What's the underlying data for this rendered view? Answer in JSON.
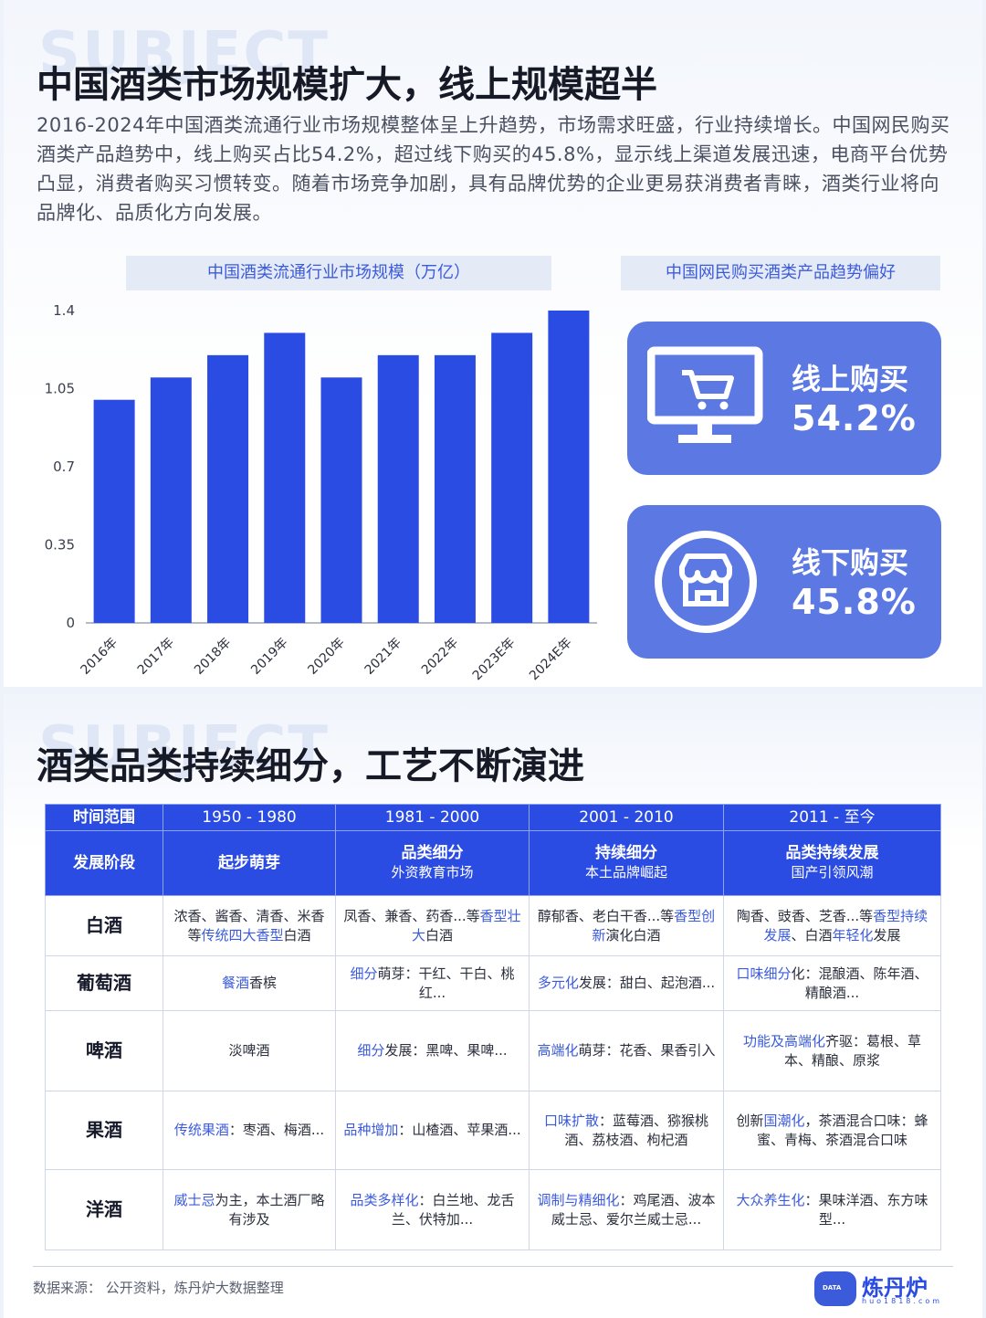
{
  "section1": {
    "ghost_text": "SUBJECT",
    "title": "中国酒类市场规模扩大，线上规模超半",
    "intro": "2016-2024年中国酒类流通行业市场规模整体呈上升趋势，市场需求旺盛，行业持续增长。中国网民购买酒类产品趋势中，线上购买占比54.2%，超过线下购买的45.8%，显示线上渠道发展迅速，电商平台优势凸显，消费者购买习惯转变。随着市场竞争加剧，具有品牌优势的企业更易获消费者青睐，酒类行业将向品牌化、品质化方向发展。",
    "chart_title": "中国酒类流通行业市场规模（万亿）",
    "pref_title": "中国网民购买酒类产品趋势偏好",
    "online_label": "线上购买",
    "online_value": "54.2%",
    "offline_label": "线下购买",
    "offline_value": "45.8%",
    "online_icon": "computer-cart-icon",
    "offline_icon": "storefront-icon"
  },
  "chart_data": {
    "type": "bar",
    "title": "中国酒类流通行业市场规模（万亿）",
    "categories": [
      "2016年",
      "2017年",
      "2018年",
      "2019年",
      "2020年",
      "2021年",
      "2022年",
      "2023E年",
      "2024E年"
    ],
    "values": [
      1.0,
      1.1,
      1.2,
      1.3,
      1.1,
      1.2,
      1.2,
      1.3,
      1.4
    ],
    "yticks": [
      "0",
      "0.35",
      "0.7",
      "1.05",
      "1.4"
    ],
    "ylim": [
      0,
      1.4
    ],
    "bar_color": "#2b4ce3",
    "grid": false
  },
  "section2": {
    "ghost_text": "SUBJECT",
    "title": "酒类品类持续细分，工艺不断演进",
    "header_row1": [
      "时间范围",
      "1950 - 1980",
      "1981 - 2000",
      "2001 - 2010",
      "2011 - 至今"
    ],
    "stage_label": "发展阶段",
    "stages": [
      {
        "main": "起步萌芽",
        "sub": ""
      },
      {
        "main": "品类细分",
        "sub": "外资教育市场"
      },
      {
        "main": "持续细分",
        "sub": "本土品牌崛起"
      },
      {
        "main": "品类持续发展",
        "sub": "国产引领风潮"
      }
    ],
    "rows": [
      {
        "name": "白酒",
        "cells": [
          [
            {
              "t": "浓香、酱香、清香、米香等"
            },
            {
              "t": "传统四大香型",
              "h": true
            },
            {
              "t": "白酒"
            }
          ],
          [
            {
              "t": "凤香、兼香、药香...等"
            },
            {
              "t": "香型壮大",
              "h": true
            },
            {
              "t": "白酒"
            }
          ],
          [
            {
              "t": "醇郁香、老白干香...等"
            },
            {
              "t": "香型创新",
              "h": true
            },
            {
              "t": "演化白酒"
            }
          ],
          [
            {
              "t": "陶香、豉香、芝香...等"
            },
            {
              "t": "香型持续发展",
              "h": true
            },
            {
              "t": "、白酒"
            },
            {
              "t": "年轻化",
              "h": true
            },
            {
              "t": "发展"
            }
          ]
        ]
      },
      {
        "name": "葡萄酒",
        "cells": [
          [
            {
              "t": "餐酒",
              "h": true
            },
            {
              "t": "香槟"
            }
          ],
          [
            {
              "t": "细分",
              "h": true
            },
            {
              "t": "萌芽：干红、干白、桃红..."
            }
          ],
          [
            {
              "t": "多元化",
              "h": true
            },
            {
              "t": "发展：甜白、起泡酒..."
            }
          ],
          [
            {
              "t": "口味细分",
              "h": true
            },
            {
              "t": "化：混酿酒、陈年酒、精酿酒..."
            }
          ]
        ]
      },
      {
        "name": "啤酒",
        "cells": [
          [
            {
              "t": "淡啤酒"
            }
          ],
          [
            {
              "t": "细分",
              "h": true
            },
            {
              "t": "发展：黑啤、果啤..."
            }
          ],
          [
            {
              "t": "高端化",
              "h": true
            },
            {
              "t": "萌芽：花香、果香引入"
            }
          ],
          [
            {
              "t": "功能及高端化",
              "h": true
            },
            {
              "t": "齐驱：葛根、草本、精酿、原浆"
            }
          ]
        ]
      },
      {
        "name": "果酒",
        "cells": [
          [
            {
              "t": "传统果酒",
              "h": true
            },
            {
              "t": "：枣酒、梅酒..."
            }
          ],
          [
            {
              "t": "品种增加",
              "h": true
            },
            {
              "t": "：山楂酒、苹果酒..."
            }
          ],
          [
            {
              "t": "口味扩散",
              "h": true
            },
            {
              "t": "：蓝莓酒、猕猴桃酒、荔枝酒、枸杞酒"
            }
          ],
          [
            {
              "t": "创新"
            },
            {
              "t": "国潮化",
              "h": true
            },
            {
              "t": "，茶酒混合口味：蜂蜜、青梅、茶酒混合口味"
            }
          ]
        ]
      },
      {
        "name": "洋酒",
        "cells": [
          [
            {
              "t": "威士忌",
              "h": true
            },
            {
              "t": "为主，本土酒厂略有涉及"
            }
          ],
          [
            {
              "t": "品类多样化",
              "h": true
            },
            {
              "t": "：白兰地、龙舌兰、伏特加..."
            }
          ],
          [
            {
              "t": "调制与精细化",
              "h": true
            },
            {
              "t": "：鸡尾酒、波本威士忌、爱尔兰威士忌..."
            }
          ],
          [
            {
              "t": "大众养生化",
              "h": true
            },
            {
              "t": "：果味洋酒、东方味型..."
            }
          ]
        ]
      }
    ],
    "source": "数据来源：  公开资料，炼丹炉大数据整理",
    "logo_name": "炼丹炉",
    "logo_badge": "DATA",
    "logo_url": "huo1818.com"
  }
}
